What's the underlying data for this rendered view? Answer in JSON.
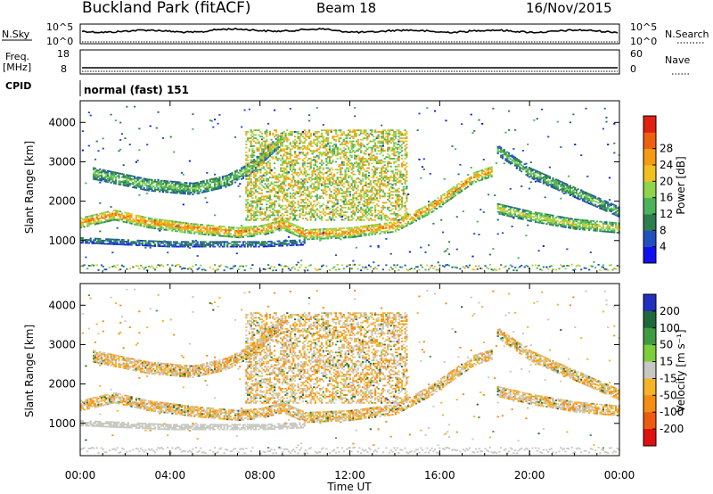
{
  "header": {
    "station": "Buckland Park (fitACF)",
    "beam": "Beam 18",
    "date": "16/Nov/2015"
  },
  "control_strip": {
    "nsky_label": "N.Sky",
    "nsky_ticks": [
      "10^5",
      "10^0"
    ],
    "nsearch_label": "N.Search",
    "nsearch_ticks": [
      "10^5",
      "10^0"
    ],
    "freq_label": "Freq.",
    "freq_unit": "[MHz]",
    "freq_ticks": [
      "18",
      "8"
    ],
    "nave_label": "Nave",
    "nave_ticks": [
      "60",
      "0"
    ],
    "cpid_label": "CPID",
    "cpid_value": "normal (fast) 151"
  },
  "chart_data": [
    {
      "type": "heatmap",
      "panel": "power",
      "ylabel": "Slant Range [km]",
      "xlabel": "Time UT",
      "xticks": [
        "00:00",
        "04:00",
        "08:00",
        "12:00",
        "16:00",
        "20:00",
        "00:00"
      ],
      "xlim_hours": [
        0,
        24
      ],
      "yticks": [
        1000,
        2000,
        3000,
        4000
      ],
      "ylim": [
        180,
        4550
      ],
      "colorbar": {
        "label": "Power [dB]",
        "ticks": [
          4,
          8,
          12,
          16,
          20,
          24,
          28
        ],
        "colors": [
          "#1010ee",
          "#2050c0",
          "#2e7d4f",
          "#4bb35a",
          "#8fd44a",
          "#f0c020",
          "#f39c12",
          "#ee6010",
          "#e02010"
        ],
        "range": [
          0,
          30
        ]
      },
      "bands": [
        {
          "name": "main_echo",
          "points": [
            [
              0,
              1450
            ],
            [
              1.5,
              1650
            ],
            [
              3,
              1450
            ],
            [
              5,
              1300
            ],
            [
              7,
              1200
            ],
            [
              8,
              1250
            ],
            [
              9,
              1400
            ],
            [
              10,
              1150
            ],
            [
              12,
              1200
            ],
            [
              14,
              1350
            ],
            [
              15.5,
              1800
            ],
            [
              16.5,
              2200
            ],
            [
              17.5,
              2600
            ],
            [
              18.3,
              2750
            ]
          ],
          "width_km": 280,
          "power_db": 24
        },
        {
          "name": "lower_echo",
          "points": [
            [
              0,
              1000
            ],
            [
              4,
              900
            ],
            [
              8,
              900
            ],
            [
              10,
              950
            ]
          ],
          "width_km": 150,
          "power_db": 9
        },
        {
          "name": "upper_echo_morning",
          "points": [
            [
              0.5,
              2700
            ],
            [
              3,
              2400
            ],
            [
              5,
              2300
            ],
            [
              6.5,
              2500
            ],
            [
              7.5,
              2800
            ],
            [
              9,
              3600
            ]
          ],
          "width_km": 300,
          "power_db": 14
        },
        {
          "name": "afternoon_descending",
          "points": [
            [
              18.5,
              3300
            ],
            [
              20,
              2700
            ],
            [
              22,
              2200
            ],
            [
              24,
              1700
            ]
          ],
          "width_km": 250,
          "power_db": 13
        },
        {
          "name": "evening_layer",
          "points": [
            [
              18.5,
              1800
            ],
            [
              20,
              1600
            ],
            [
              22,
              1400
            ],
            [
              24,
              1300
            ]
          ],
          "width_km": 250,
          "power_db": 18
        }
      ],
      "spread_region": {
        "t_start": 7.3,
        "t_end": 14.5,
        "range_low": 1500,
        "range_high": 3800,
        "power_db": 22
      }
    },
    {
      "type": "heatmap",
      "panel": "velocity",
      "ylabel": "Slant Range [km]",
      "xlabel": "Time UT",
      "xticks": [
        "00:00",
        "04:00",
        "08:00",
        "12:00",
        "16:00",
        "20:00",
        "00:00"
      ],
      "xlim_hours": [
        0,
        24
      ],
      "yticks": [
        1000,
        2000,
        3000,
        4000
      ],
      "ylim": [
        180,
        4550
      ],
      "colorbar": {
        "label": "Velocity [m s⁻¹]",
        "ticks": [
          "200",
          "100",
          "50",
          "15",
          "-15",
          "-50",
          "-100",
          "-200"
        ],
        "colors": [
          "#2030c0",
          "#1e6a3a",
          "#3f9b40",
          "#7ccf3a",
          "#c8c8c2",
          "#f4b429",
          "#f58d12",
          "#ee5a10",
          "#e01010"
        ]
      },
      "ground_scatter_color": "#c8c8c2",
      "dominant_velocity_ms": [
        -30,
        -60
      ]
    }
  ]
}
